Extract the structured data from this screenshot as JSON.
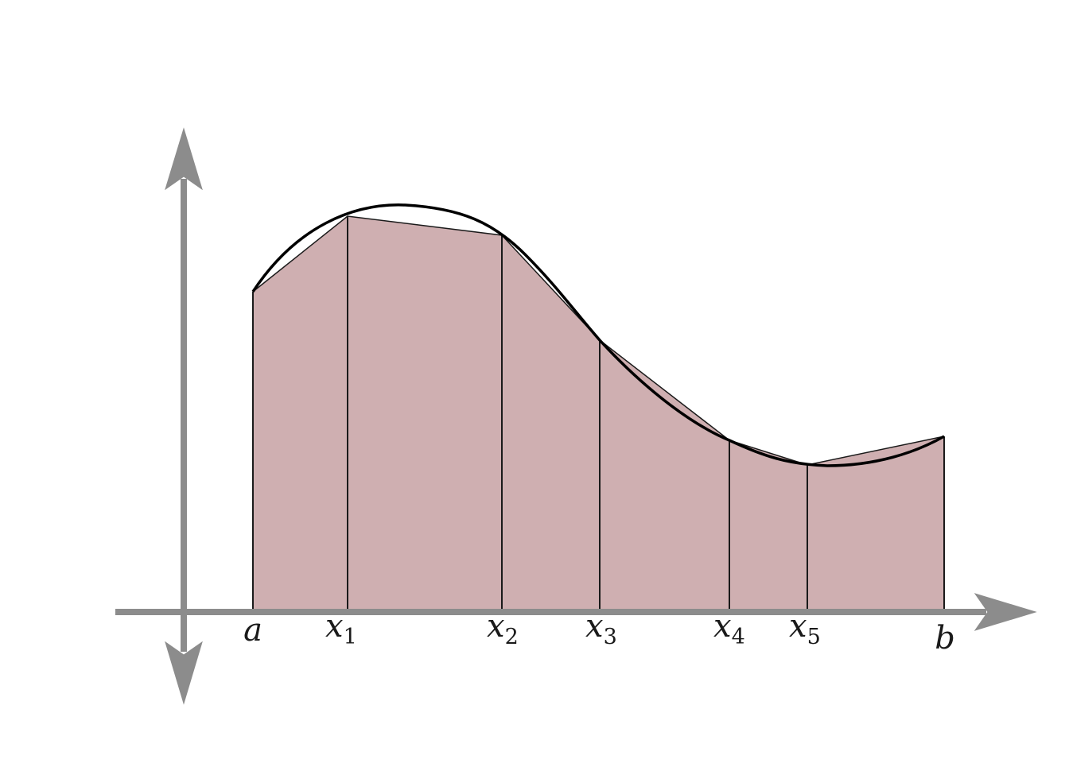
{
  "labels": {
    "a": "a",
    "x1": "x",
    "x1_sub": "1",
    "x2": "x",
    "x2_sub": "2",
    "x3": "x",
    "x3_sub": "3",
    "x4": "x",
    "x4_sub": "4",
    "x5": "x",
    "x5_sub": "5",
    "b": "b"
  },
  "colors": {
    "fill": "#cfafb1",
    "axis": "#8c8c8c",
    "curve": "#000000",
    "partition": "#1a1a1a"
  }
}
